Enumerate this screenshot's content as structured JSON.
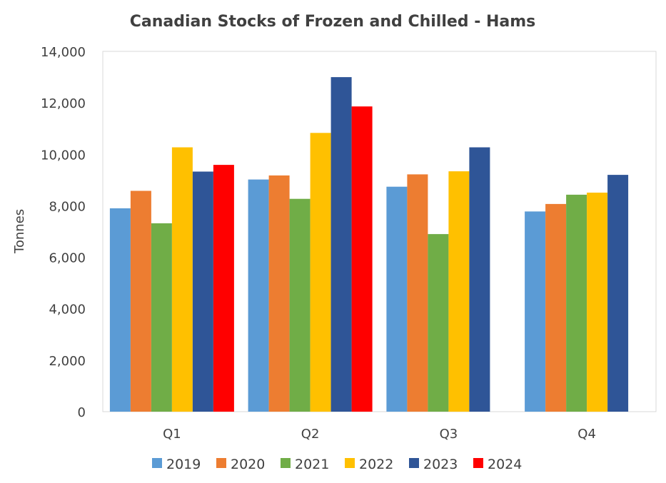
{
  "chart_data": {
    "type": "bar",
    "title": "Canadian Stocks of Frozen and Chilled - Hams",
    "xlabel": "",
    "ylabel": "Tonnes",
    "ylim": [
      0,
      14000
    ],
    "yticks": [
      0,
      2000,
      4000,
      6000,
      8000,
      10000,
      12000,
      14000
    ],
    "ytick_labels": [
      "0",
      "2,000",
      "4,000",
      "6,000",
      "8,000",
      "10,000",
      "12,000",
      "14,000"
    ],
    "categories": [
      "Q1",
      "Q2",
      "Q3",
      "Q4"
    ],
    "grid": false,
    "legend_position": "bottom",
    "series": [
      {
        "name": "2019",
        "color": "#5B9BD5",
        "values": [
          7900,
          9020,
          8740,
          7780
        ]
      },
      {
        "name": "2020",
        "color": "#ED7D31",
        "values": [
          8580,
          9180,
          9220,
          8070
        ]
      },
      {
        "name": "2021",
        "color": "#70AD47",
        "values": [
          7320,
          8270,
          6900,
          8430
        ]
      },
      {
        "name": "2022",
        "color": "#FFC000",
        "values": [
          10270,
          10830,
          9340,
          8510
        ]
      },
      {
        "name": "2023",
        "color": "#2F5597",
        "values": [
          9330,
          13000,
          10270,
          9200
        ]
      },
      {
        "name": "2024",
        "color": "#FF0000",
        "values": [
          9590,
          11860,
          null,
          null
        ]
      }
    ]
  }
}
